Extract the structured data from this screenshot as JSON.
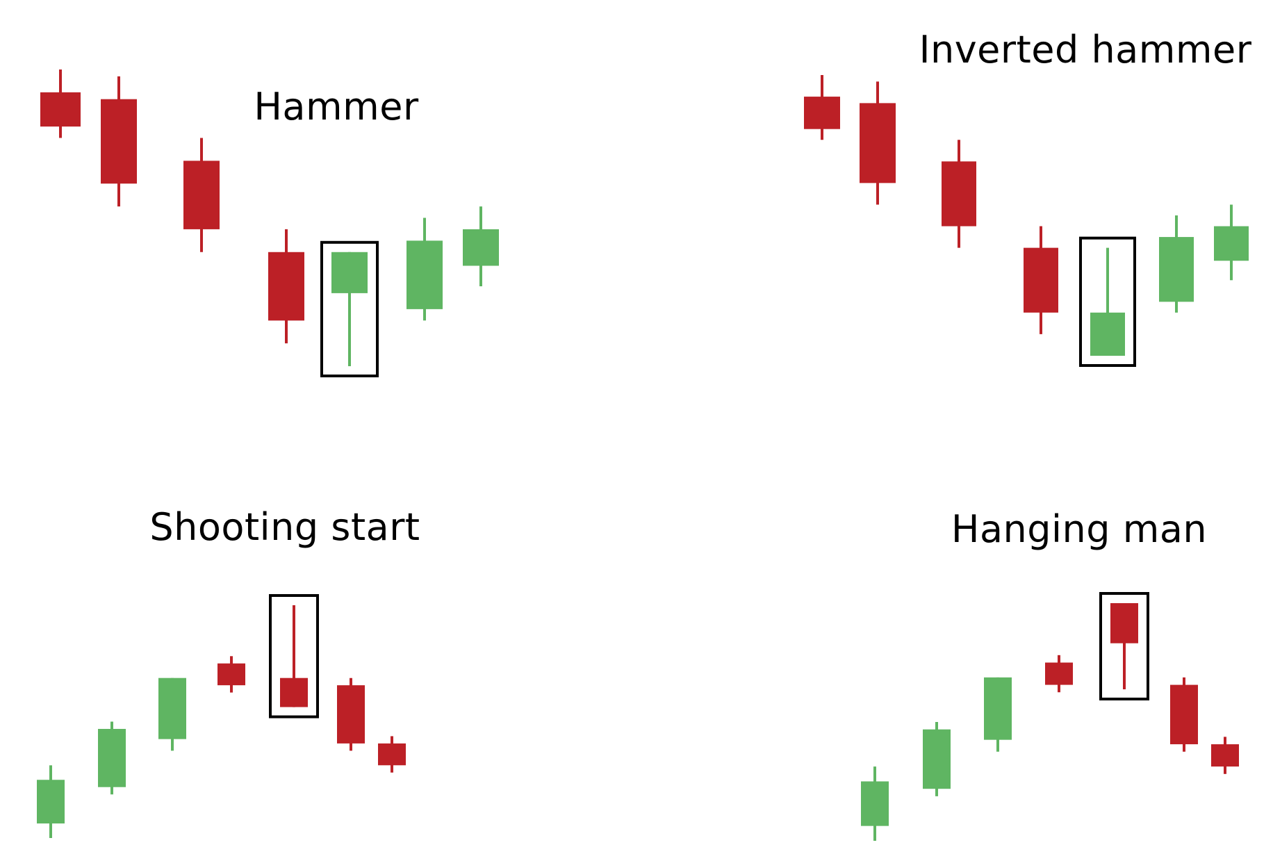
{
  "colors": {
    "bearish": "#bc2026",
    "bullish": "#5fb562",
    "highlight_box": "#000000",
    "background": "#ffffff"
  },
  "chart_data": [
    {
      "type": "candlestick",
      "title": "Hammer",
      "highlight_index": 4,
      "candles": [
        {
          "open": 12.0,
          "high": 13.0,
          "low": 10.0,
          "close": 10.5
        },
        {
          "open": 11.7,
          "high": 12.7,
          "low": 7.0,
          "close": 8.0
        },
        {
          "open": 9.0,
          "high": 10.0,
          "low": 5.0,
          "close": 6.0
        },
        {
          "open": 5.0,
          "high": 6.0,
          "low": 1.0,
          "close": 2.0
        },
        {
          "open": 3.2,
          "high": 5.0,
          "low": 0.0,
          "close": 5.0
        },
        {
          "open": 2.5,
          "high": 6.5,
          "low": 2.0,
          "close": 5.5
        },
        {
          "open": 4.4,
          "high": 7.0,
          "low": 3.5,
          "close": 6.0
        }
      ]
    },
    {
      "type": "candlestick",
      "title": "Inverted hammer",
      "highlight_index": 4,
      "candles": [
        {
          "open": 12.0,
          "high": 13.0,
          "low": 10.0,
          "close": 10.5
        },
        {
          "open": 11.7,
          "high": 12.7,
          "low": 7.0,
          "close": 8.0
        },
        {
          "open": 9.0,
          "high": 10.0,
          "low": 5.0,
          "close": 6.0
        },
        {
          "open": 5.0,
          "high": 6.0,
          "low": 1.0,
          "close": 2.0
        },
        {
          "open": 0.0,
          "high": 5.0,
          "low": 0.0,
          "close": 2.0
        },
        {
          "open": 2.5,
          "high": 6.5,
          "low": 2.0,
          "close": 5.5
        },
        {
          "open": 4.4,
          "high": 7.0,
          "low": 3.5,
          "close": 6.0
        }
      ]
    },
    {
      "type": "candlestick",
      "title": "Shooting start",
      "highlight_index": 4,
      "candles": [
        {
          "open": 0.0,
          "high": 4.0,
          "low": -1.0,
          "close": 3.0
        },
        {
          "open": 2.5,
          "high": 7.0,
          "low": 2.0,
          "close": 6.5
        },
        {
          "open": 5.8,
          "high": 10.0,
          "low": 5.0,
          "close": 10.0
        },
        {
          "open": 11.0,
          "high": 11.5,
          "low": 9.0,
          "close": 9.5
        },
        {
          "open": 10.0,
          "high": 15.0,
          "low": 8.0,
          "close": 8.0
        },
        {
          "open": 9.5,
          "high": 10.0,
          "low": 5.0,
          "close": 5.5
        },
        {
          "open": 5.5,
          "high": 6.0,
          "low": 3.5,
          "close": 4.0
        }
      ]
    },
    {
      "type": "candlestick",
      "title": "Hanging man",
      "highlight_index": 4,
      "candles": [
        {
          "open": 0.0,
          "high": 4.0,
          "low": -1.0,
          "close": 3.0
        },
        {
          "open": 2.5,
          "high": 7.0,
          "low": 2.0,
          "close": 6.5
        },
        {
          "open": 5.8,
          "high": 10.0,
          "low": 5.0,
          "close": 10.0
        },
        {
          "open": 11.0,
          "high": 11.5,
          "low": 9.0,
          "close": 9.5
        },
        {
          "open": 15.0,
          "high": 15.0,
          "low": 9.2,
          "close": 12.3
        },
        {
          "open": 9.5,
          "high": 10.0,
          "low": 5.0,
          "close": 5.5
        },
        {
          "open": 5.5,
          "high": 6.0,
          "low": 3.5,
          "close": 4.0
        }
      ]
    }
  ]
}
